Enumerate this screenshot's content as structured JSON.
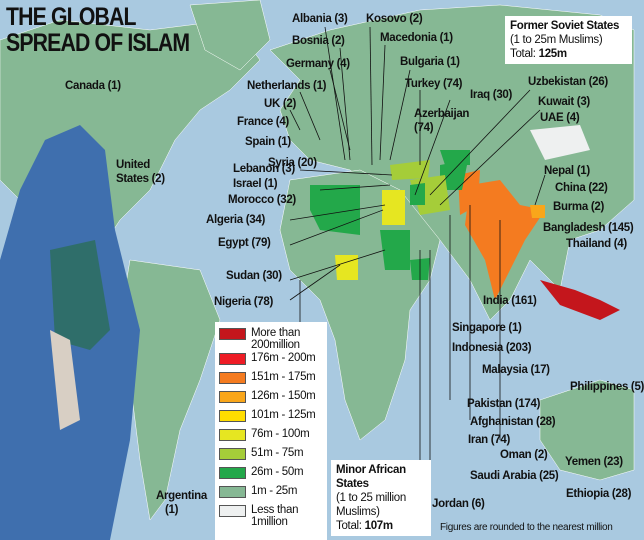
{
  "title": [
    "THE GLOBAL",
    "SPREAD OF ISLAM"
  ],
  "countries": [
    "Canada (1)",
    "United",
    "States (2)",
    "Argentina",
    "(1)",
    "Albania (3)",
    "Kosovo (2)",
    "Bosnia (2)",
    "Macedonia (1)",
    "Germany (4)",
    "Bulgaria (1)",
    "Netherlands (1)",
    "Turkey (74)",
    "UK (2)",
    "France (4)",
    "Spain (1)",
    "Iraq (30)",
    "Uzbekistan (26)",
    "Kuwait (3)",
    "UAE (4)",
    "Azerbaijan",
    "(74)",
    "Lebanon (3)",
    "Syria (20)",
    "Israel (1)",
    "Morocco (32)",
    "Algeria (34)",
    "Egypt (79)",
    "Sudan (30)",
    "Nigeria (78)",
    "Nepal (1)",
    "China (22)",
    "Burma (2)",
    "Bangladesh (145)",
    "Thailand (4)",
    "India (161)",
    "Singapore (1)",
    "Indonesia (203)",
    "Malaysia (17)",
    "Philippines (5)",
    "Pakistan (174)",
    "Afghanistan (28)",
    "Iran (74)",
    "Oman (2)",
    "Yemen (23)",
    "Saudi Arabia (25)",
    "Ethiopia (28)",
    "Jordan (6)"
  ],
  "soviet": {
    "title": "Former Soviet States",
    "sub": "(1 to 25m Muslims)",
    "total_label": "Total:",
    "total": "125m"
  },
  "african": {
    "title": "Minor African",
    "title2": "States",
    "sub": "(1 to 25 million",
    "sub2": "Muslims)",
    "total_label": "Total:",
    "total": "107m"
  },
  "legend": [
    {
      "label": "More than 200million",
      "color": "#c4161c"
    },
    {
      "label": "176m - 200m",
      "color": "#ee1c25"
    },
    {
      "label": "151m - 175m",
      "color": "#f47b20"
    },
    {
      "label": "126m - 150m",
      "color": "#f9a61a"
    },
    {
      "label": "101m - 125m",
      "color": "#ffdd00"
    },
    {
      "label": "76m - 100m",
      "color": "#e6e621"
    },
    {
      "label": "51m - 75m",
      "color": "#a5cd39"
    },
    {
      "label": "26m - 50m",
      "color": "#23a84a"
    },
    {
      "label": "1m - 25m",
      "color": "#86b894"
    },
    {
      "label": "Less than 1million",
      "color": "#eef0f0"
    }
  ],
  "footnote": "Figures are rounded to the nearest million"
}
